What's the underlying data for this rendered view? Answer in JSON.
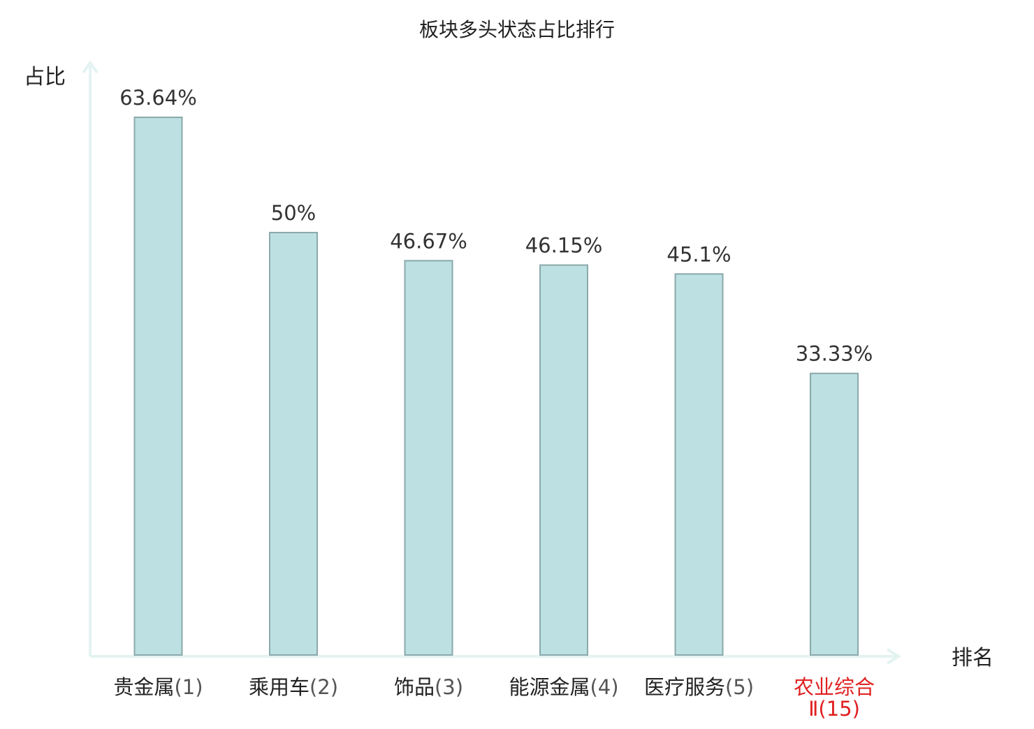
{
  "chart_data": {
    "type": "bar",
    "title": "板块多头状态占比排行",
    "ylabel": "占比",
    "xlabel": "排名",
    "ylim": [
      0,
      70
    ],
    "grid": false,
    "categories": [
      {
        "name": "贵金属",
        "rank": "(1)",
        "highlight": false
      },
      {
        "name": "乘用车",
        "rank": "(2)",
        "highlight": false
      },
      {
        "name": "饰品",
        "rank": "(3)",
        "highlight": false
      },
      {
        "name": "能源金属",
        "rank": "(4)",
        "highlight": false
      },
      {
        "name": "医疗服务",
        "rank": "(5)",
        "highlight": false
      },
      {
        "name": "农业综合",
        "name_line2": "Ⅱ",
        "rank": "(15)",
        "highlight": true
      }
    ],
    "values": [
      63.64,
      50,
      46.67,
      46.15,
      45.1,
      33.33
    ],
    "value_labels": [
      "63.64%",
      "50%",
      "46.67%",
      "46.15%",
      "45.1%",
      "33.33%"
    ]
  },
  "colors": {
    "bar_fill": "#bde0e3",
    "bar_stroke": "#8aa9ab",
    "axis": "#e3f3f1",
    "text": "#222222",
    "value_text": "#333333",
    "rank_text": "#555555",
    "highlight": "#e02020"
  }
}
